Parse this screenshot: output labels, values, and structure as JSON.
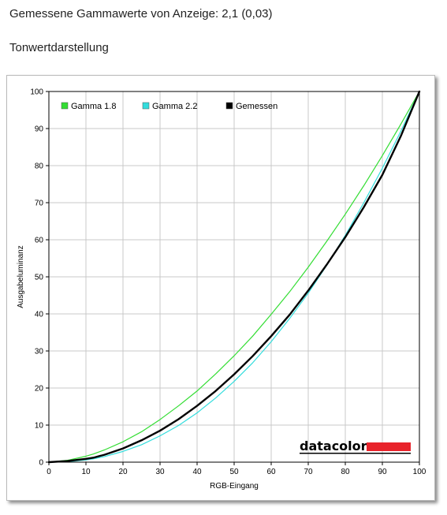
{
  "page": {
    "heading": "Gemessene Gammawerte von Anzeige: 2,1 (0,03)",
    "subheading": "Tonwertdarstellung"
  },
  "logo": {
    "text": "datacolor",
    "accent": "#e8232b"
  },
  "chart_data": {
    "type": "line",
    "title": "",
    "xlabel": "RGB-Eingang",
    "ylabel": "Ausgabeluminanz",
    "xlim": [
      0,
      100
    ],
    "ylim": [
      0,
      100
    ],
    "xticks": [
      "0",
      "10",
      "20",
      "30",
      "40",
      "50",
      "60",
      "70",
      "80",
      "90",
      "100"
    ],
    "yticks": [
      "0",
      "10",
      "20",
      "30",
      "40",
      "50",
      "60",
      "70",
      "80",
      "90",
      "100"
    ],
    "grid": true,
    "legend": "top-left",
    "x": [
      0,
      5,
      10,
      12,
      15,
      20,
      25,
      30,
      35,
      40,
      45,
      50,
      55,
      60,
      65,
      70,
      75,
      80,
      85,
      90,
      95,
      100
    ],
    "series": [
      {
        "name": "Gamma 1.8",
        "color": "#33dd33",
        "values": [
          0,
          0.5,
          1.6,
          2.2,
          3.3,
          5.5,
          8.2,
          11.5,
          15.2,
          19.2,
          23.8,
          28.7,
          34.0,
          39.9,
          46.0,
          52.6,
          59.6,
          66.9,
          74.6,
          82.7,
          91.2,
          100
        ]
      },
      {
        "name": "Gamma 2.2",
        "color": "#33dddd",
        "values": [
          0,
          0.1,
          0.6,
          0.9,
          1.5,
          2.9,
          4.7,
          7.1,
          9.9,
          13.3,
          17.3,
          21.8,
          26.8,
          32.5,
          38.8,
          45.6,
          53.1,
          61.2,
          70.0,
          79.3,
          89.3,
          100
        ]
      },
      {
        "name": "Gemessen",
        "color": "#000000",
        "values": [
          0,
          0.3,
          0.9,
          1.2,
          2.0,
          3.7,
          5.9,
          8.5,
          11.6,
          15.2,
          19.2,
          23.7,
          28.6,
          34.0,
          39.8,
          46.3,
          53.3,
          60.7,
          68.8,
          77.5,
          88.0,
          100
        ]
      }
    ]
  }
}
